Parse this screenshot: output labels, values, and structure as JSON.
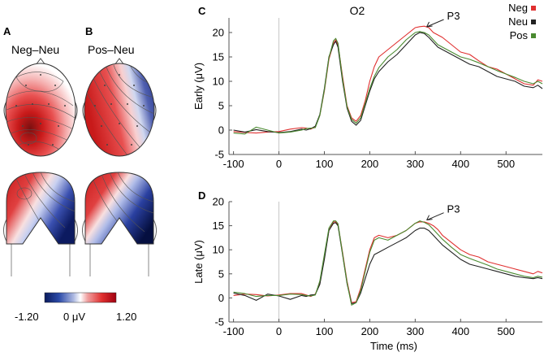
{
  "panels": {
    "a": {
      "letter": "A",
      "title": "Neg–Neu"
    },
    "b": {
      "letter": "B",
      "title": "Pos–Neu"
    },
    "c": {
      "letter": "C"
    },
    "d": {
      "letter": "D"
    }
  },
  "colorbar": {
    "min_label": "-1.20",
    "mid_label": "0 μV",
    "max_label": "1.20",
    "low_color": "#0a1a5c",
    "mid_color": "#ffffff",
    "high_color": "#c8102e"
  },
  "series_colors": {
    "Neg": "#e03030",
    "Neu": "#222222",
    "Pos": "#4a8a30"
  },
  "chart_data": [
    {
      "type": "line",
      "panel": "C",
      "title": "O2",
      "ylabel": "Early (μV)",
      "xlabel": "",
      "xlim": [
        -110,
        580
      ],
      "ylim": [
        -5,
        23
      ],
      "xticks": [
        -100,
        0,
        100,
        200,
        300,
        400,
        500
      ],
      "yticks": [
        -5,
        0,
        5,
        10,
        15,
        20
      ],
      "annotation": {
        "text": "P3",
        "x": 320,
        "y": 21
      },
      "legend": [
        "Neg",
        "Neu",
        "Pos"
      ],
      "series": [
        {
          "name": "Neg",
          "x": [
            -100,
            -75,
            -50,
            -25,
            0,
            25,
            50,
            60,
            70,
            80,
            90,
            100,
            110,
            120,
            125,
            130,
            140,
            150,
            160,
            170,
            180,
            190,
            200,
            210,
            220,
            240,
            260,
            280,
            300,
            310,
            320,
            330,
            340,
            350,
            360,
            380,
            400,
            420,
            440,
            460,
            480,
            500,
            520,
            540,
            560,
            570,
            580
          ],
          "y": [
            -0.3,
            -0.5,
            -0.6,
            -0.4,
            -0.3,
            0.2,
            0.5,
            0.4,
            0.2,
            0.6,
            3,
            8,
            14.5,
            17.8,
            18.5,
            17.5,
            11,
            5,
            2.5,
            1.8,
            3,
            6,
            10,
            13,
            15,
            16.5,
            18,
            19.5,
            21,
            21.2,
            21.3,
            21,
            20,
            19.5,
            19,
            17.5,
            16,
            15.5,
            14.2,
            13,
            12.5,
            11.5,
            10.5,
            9.5,
            9.2,
            10.3,
            10
          ]
        },
        {
          "name": "Neu",
          "x": [
            -100,
            -75,
            -50,
            -25,
            0,
            25,
            50,
            60,
            70,
            80,
            90,
            100,
            110,
            120,
            125,
            130,
            140,
            150,
            160,
            170,
            180,
            190,
            200,
            210,
            220,
            240,
            260,
            280,
            300,
            310,
            320,
            330,
            340,
            350,
            360,
            380,
            400,
            420,
            440,
            460,
            480,
            500,
            520,
            540,
            560,
            570,
            580
          ],
          "y": [
            0,
            -0.4,
            0.1,
            -0.3,
            -0.5,
            -0.3,
            0.2,
            0,
            0.3,
            0.8,
            3.2,
            8.5,
            15,
            17.5,
            18.2,
            17,
            10,
            4.5,
            1.8,
            1,
            2,
            5,
            8,
            10.5,
            12,
            14,
            15.5,
            17.5,
            19.5,
            20,
            19.8,
            19,
            18,
            17,
            16.5,
            15.5,
            14.5,
            13.5,
            13,
            12,
            11,
            10.5,
            10,
            9,
            8.7,
            9.2,
            8.5
          ]
        },
        {
          "name": "Pos",
          "x": [
            -100,
            -75,
            -50,
            -25,
            0,
            25,
            50,
            60,
            70,
            80,
            90,
            100,
            110,
            120,
            125,
            130,
            140,
            150,
            160,
            170,
            180,
            190,
            200,
            210,
            220,
            240,
            260,
            280,
            300,
            310,
            320,
            330,
            340,
            350,
            360,
            380,
            400,
            420,
            440,
            460,
            480,
            500,
            520,
            540,
            560,
            570,
            580
          ],
          "y": [
            -0.6,
            -0.8,
            0.6,
            0,
            -0.6,
            -0.4,
            0,
            0.3,
            0.4,
            0.5,
            3,
            8.2,
            14.8,
            18.3,
            18.8,
            17.8,
            10.5,
            4.8,
            2.2,
            1.4,
            2.5,
            5.5,
            8.5,
            11,
            12.8,
            15,
            16.5,
            18.5,
            20,
            20.2,
            20,
            19.5,
            18.5,
            17.5,
            17,
            16,
            15,
            14.5,
            13.8,
            13,
            12.2,
            11.5,
            10.8,
            10,
            9.5,
            10,
            9.5
          ]
        }
      ]
    },
    {
      "type": "line",
      "panel": "D",
      "title": "",
      "ylabel": "Late (μV)",
      "xlabel": "Time (ms)",
      "xlim": [
        -110,
        580
      ],
      "ylim": [
        -5,
        20
      ],
      "xticks": [
        -100,
        0,
        100,
        200,
        300,
        400,
        500
      ],
      "yticks": [
        -5,
        0,
        5,
        10,
        15,
        20
      ],
      "annotation": {
        "text": "P3",
        "x": 320,
        "y": 16
      },
      "series": [
        {
          "name": "Neg",
          "x": [
            -100,
            -75,
            -50,
            -25,
            0,
            25,
            50,
            60,
            70,
            80,
            90,
            100,
            110,
            120,
            125,
            130,
            140,
            150,
            160,
            170,
            180,
            190,
            200,
            210,
            220,
            240,
            260,
            280,
            300,
            310,
            320,
            330,
            340,
            350,
            360,
            380,
            400,
            420,
            440,
            460,
            480,
            500,
            520,
            540,
            560,
            570,
            580
          ],
          "y": [
            0.5,
            0.8,
            0.7,
            0.4,
            0.6,
            0.9,
            0.9,
            0.6,
            0.3,
            0.8,
            3,
            8.5,
            14,
            15.8,
            15.8,
            15.2,
            9.5,
            3.5,
            -1,
            -0.8,
            2,
            6,
            10,
            12.5,
            13,
            12.5,
            13,
            14,
            15.5,
            15.8,
            15.8,
            15.5,
            15,
            14.2,
            13,
            11.5,
            10,
            9,
            8.5,
            7.5,
            7,
            6.5,
            6,
            5.5,
            5,
            5.5,
            5.2
          ]
        },
        {
          "name": "Neu",
          "x": [
            -100,
            -75,
            -50,
            -25,
            0,
            25,
            50,
            60,
            70,
            80,
            90,
            100,
            110,
            120,
            125,
            130,
            140,
            150,
            160,
            170,
            180,
            190,
            200,
            210,
            220,
            240,
            260,
            280,
            300,
            310,
            320,
            330,
            340,
            350,
            360,
            380,
            400,
            420,
            440,
            460,
            480,
            500,
            520,
            540,
            560,
            570,
            580
          ],
          "y": [
            1,
            0.5,
            -0.5,
            0.8,
            0.4,
            -0.3,
            0.5,
            0.3,
            0.6,
            0.7,
            2.8,
            8,
            14,
            15.5,
            15.6,
            15,
            9,
            3,
            -1.2,
            -1,
            1,
            4,
            7,
            9,
            9.5,
            10.5,
            11.5,
            12.5,
            14,
            14.5,
            14.5,
            14,
            13,
            12,
            11,
            9.5,
            8,
            7,
            6.5,
            6,
            5.5,
            5,
            4.5,
            4.2,
            4,
            4.2,
            4
          ]
        },
        {
          "name": "Pos",
          "x": [
            -100,
            -75,
            -50,
            -25,
            0,
            25,
            50,
            60,
            70,
            80,
            90,
            100,
            110,
            120,
            125,
            130,
            140,
            150,
            160,
            170,
            180,
            190,
            200,
            210,
            220,
            240,
            260,
            280,
            300,
            310,
            320,
            330,
            340,
            350,
            360,
            380,
            400,
            420,
            440,
            460,
            480,
            500,
            520,
            540,
            560,
            570,
            580
          ],
          "y": [
            1.2,
            0.9,
            0.3,
            0.5,
            0.5,
            0.8,
            0.7,
            0.5,
            0.4,
            0.6,
            3.5,
            9,
            14.5,
            16,
            16,
            15.4,
            9.2,
            3.2,
            -1.5,
            -1,
            1.5,
            5.5,
            9.5,
            12,
            12.5,
            12,
            13,
            14,
            15.5,
            16,
            15.7,
            15.2,
            14.2,
            13.2,
            12.2,
            10.5,
            9,
            8.2,
            7.5,
            6.8,
            6,
            5.5,
            5,
            4.5,
            4.2,
            4.5,
            4.3
          ]
        }
      ]
    }
  ]
}
